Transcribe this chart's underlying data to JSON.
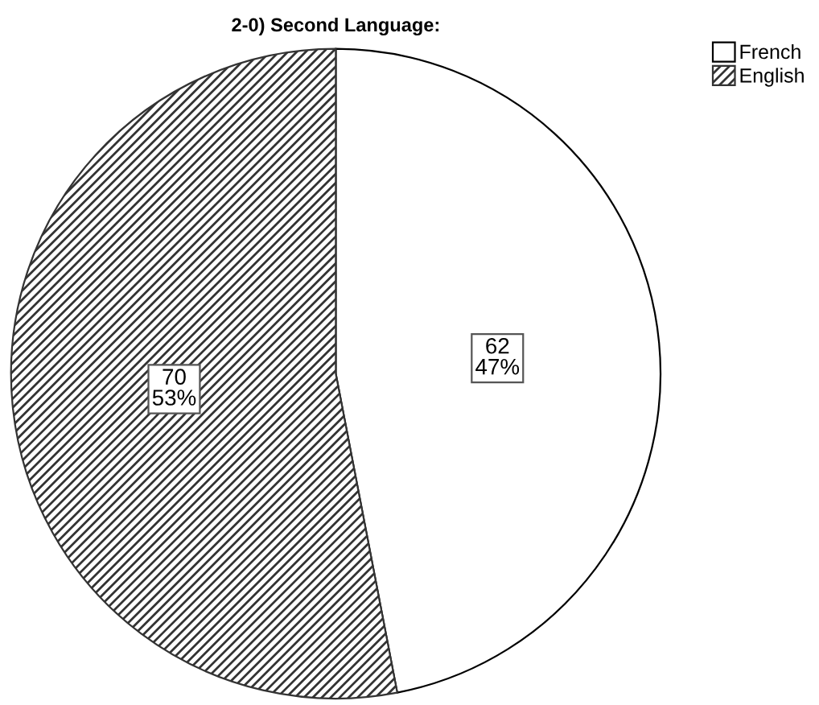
{
  "chart_data": {
    "type": "pie",
    "title": "2-0) Second Language:",
    "categories": [
      "French",
      "English"
    ],
    "values": [
      62,
      70
    ],
    "colors": [
      "#ffffff",
      "#333333"
    ],
    "value_labels": [
      "62\n47%",
      "70\n53%"
    ],
    "legend": "top right"
  }
}
